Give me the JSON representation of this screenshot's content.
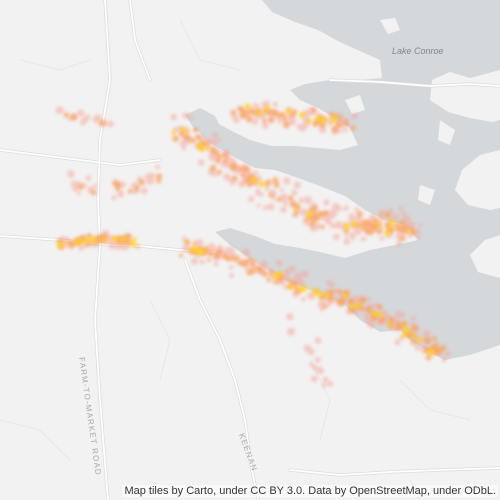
{
  "map": {
    "water_label": "Lake Conroe",
    "road_labels": {
      "fm": "FARM-TO-MARKET ROAD",
      "keenan": "KEENAN"
    },
    "attribution": "Map tiles by Carto, under CC BY 3.0. Data by OpenStreetMap, under ODbL.",
    "colors": {
      "land": "#f2f2f2",
      "water": "#d4d8db",
      "road": "#ffffff",
      "road_outline": "#d9d9d9",
      "heat_low": "#f7a59a",
      "heat_mid": "#fba15a",
      "heat_high": "#ffd21f"
    }
  }
}
